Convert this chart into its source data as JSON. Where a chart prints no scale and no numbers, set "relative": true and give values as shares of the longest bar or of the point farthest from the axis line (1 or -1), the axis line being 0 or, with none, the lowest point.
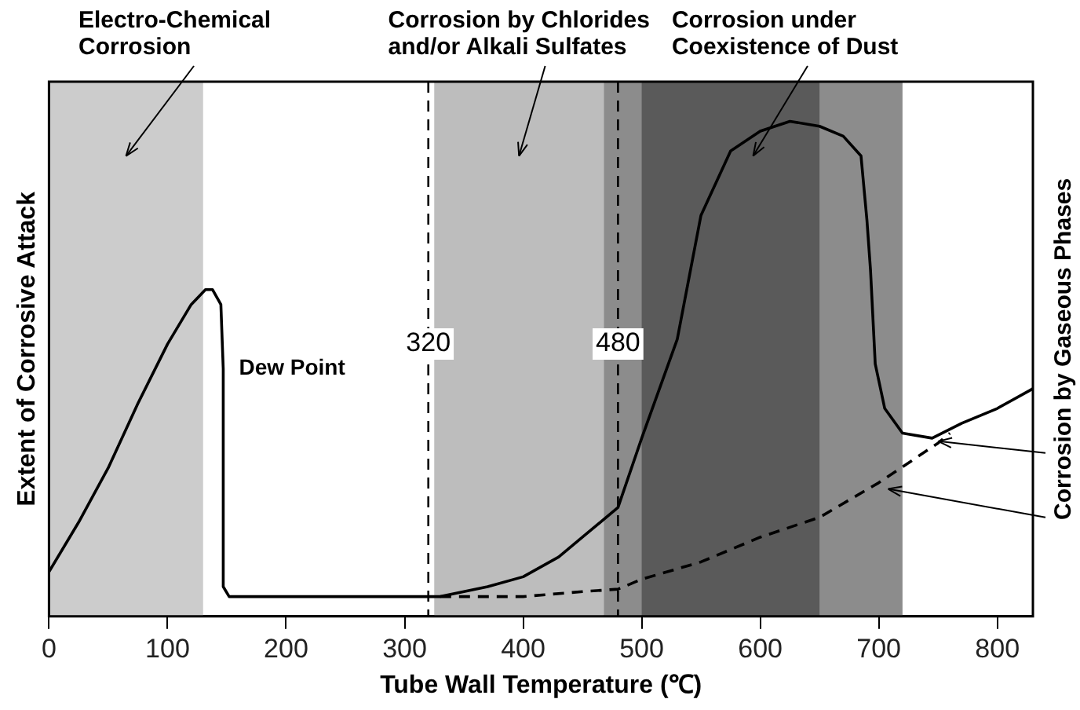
{
  "chart_data": {
    "type": "line",
    "xlabel": "Tube Wall Temperature (℃)",
    "ylabel": "Extent of Corrosive Attack",
    "relative": true,
    "xlim": [
      0,
      830
    ],
    "xticks": [
      0,
      100,
      200,
      300,
      400,
      500,
      600,
      700,
      800
    ],
    "tick_labels": "x",
    "grid": false,
    "legend": false,
    "marker": "none",
    "series": [
      {
        "color": "#000000",
        "line_style": "solid",
        "x": [
          0,
          25,
          50,
          75,
          100,
          120,
          132,
          138,
          145,
          147,
          147,
          152,
          160,
          200,
          250,
          300,
          330,
          370,
          400,
          430,
          450,
          480,
          500,
          515,
          530,
          550,
          575,
          600,
          625,
          650,
          670,
          685,
          690,
          693,
          697,
          705,
          720,
          745,
          770,
          800,
          830
        ],
        "values": [
          0.09,
          0.19,
          0.3,
          0.43,
          0.55,
          0.63,
          0.66,
          0.66,
          0.63,
          0.5,
          0.06,
          0.04,
          0.04,
          0.04,
          0.04,
          0.04,
          0.04,
          0.06,
          0.08,
          0.12,
          0.16,
          0.22,
          0.36,
          0.46,
          0.56,
          0.81,
          0.94,
          0.98,
          1.0,
          0.99,
          0.97,
          0.93,
          0.8,
          0.7,
          0.51,
          0.42,
          0.37,
          0.36,
          0.39,
          0.42,
          0.46
        ]
      },
      {
        "color": "#000000",
        "line_style": "dashed",
        "x": [
          330,
          400,
          450,
          480,
          500,
          550,
          600,
          650,
          700,
          750,
          760
        ],
        "values": [
          0.04,
          0.04,
          0.05,
          0.055,
          0.075,
          0.11,
          0.16,
          0.2,
          0.27,
          0.35,
          0.37
        ]
      }
    ],
    "ref_lines": [
      {
        "axis": "x",
        "value": 320,
        "label": "320",
        "line_style": "dashed",
        "color": "#000000"
      },
      {
        "axis": "x",
        "value": 480,
        "label": "480",
        "line_style": "dashed",
        "color": "#000000"
      }
    ],
    "bands": [
      {
        "axis": "x",
        "from": 0,
        "to": 130,
        "label": "Electro-Chemical Corrosion",
        "color": "#cccccc"
      },
      {
        "axis": "x",
        "from": 325,
        "to": 468,
        "label": "Corrosion by Chlorides and/or Alkali Sulfates",
        "color": "#bdbdbd"
      },
      {
        "axis": "x",
        "from": 468,
        "to": 720,
        "label": "Corrosion under Coexistence of Dust",
        "color": "#8c8c8c"
      },
      {
        "axis": "x",
        "from": 500,
        "to": 650,
        "color": "#5a5a5a"
      }
    ],
    "annotations": [
      {
        "text": "Dew Point",
        "x": 147,
        "y": 0.5
      },
      "Corrosion by Gaseous Phases"
    ]
  }
}
